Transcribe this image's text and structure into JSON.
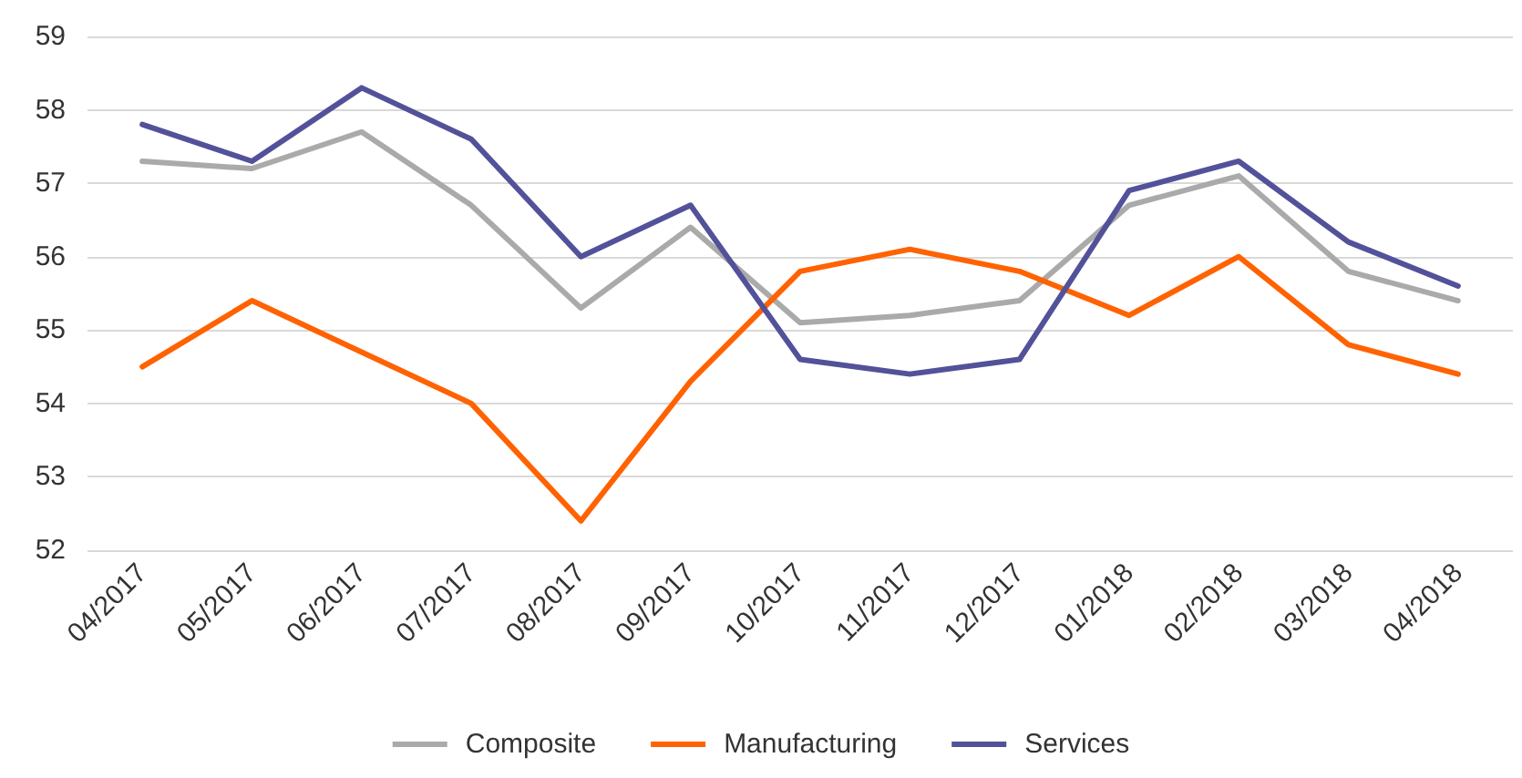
{
  "chart_data": {
    "type": "line",
    "categories": [
      "04/2017",
      "05/2017",
      "06/2017",
      "07/2017",
      "08/2017",
      "09/2017",
      "10/2017",
      "11/2017",
      "12/2017",
      "01/2018",
      "02/2018",
      "03/2018",
      "04/2018"
    ],
    "series": [
      {
        "name": "Composite",
        "color": "#aaaaaa",
        "values": [
          57.3,
          57.2,
          57.7,
          56.7,
          55.3,
          56.4,
          55.1,
          55.2,
          55.4,
          56.7,
          57.1,
          55.8,
          55.4
        ]
      },
      {
        "name": "Manufacturing",
        "color": "#ff6200",
        "values": [
          54.5,
          55.4,
          54.7,
          54.0,
          52.4,
          54.3,
          55.8,
          56.1,
          55.8,
          55.2,
          56.0,
          54.8,
          54.4
        ]
      },
      {
        "name": "Services",
        "color": "#525199",
        "values": [
          57.8,
          57.3,
          58.3,
          57.6,
          56.0,
          56.7,
          54.6,
          54.4,
          54.6,
          56.9,
          57.3,
          56.2,
          55.6
        ]
      }
    ],
    "ylim": [
      52,
      59
    ],
    "yticks": [
      52,
      53,
      54,
      55,
      56,
      57,
      58,
      59
    ],
    "grid": "y",
    "legend": "bottom",
    "marker": "none",
    "line_style": "solid"
  }
}
